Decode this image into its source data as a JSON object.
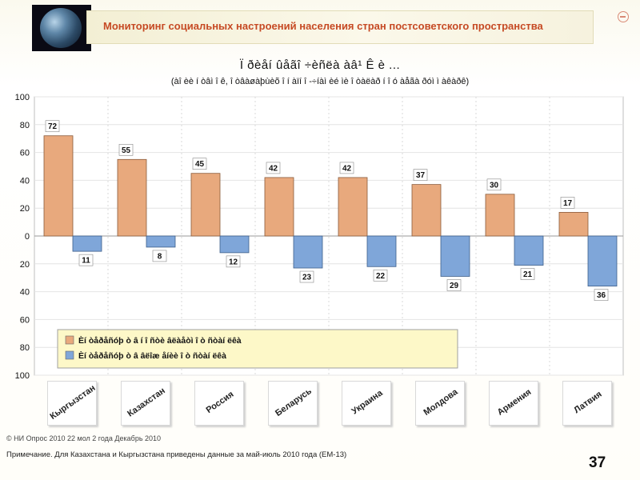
{
  "header": {
    "title": "Мониторинг социальных настроений населения стран постсоветского пространства"
  },
  "chart_data": {
    "type": "bar",
    "title": "Ï ðèåí ûåãî ÷èñëà àâ¹ Ê è ...",
    "subtitle": "(àî èè í òâì î ê, î òâàøàþùèõ î í àïí î -÷íàì èé ìè î òàëàð í î ó àåãà ðóì ì àêàðê)",
    "categories": [
      "Кыргызстан",
      "Казахстан",
      "Россия",
      "Беларусь",
      "Украина",
      "Молдова",
      "Армения",
      "Латвия"
    ],
    "series": [
      {
        "name": "Èí òåðåñóþ ò â í î ñòè âëàåòì  î ò ñòàí ëêà",
        "color": "#e8a97d",
        "values": [
          72,
          55,
          45,
          42,
          42,
          37,
          30,
          17
        ]
      },
      {
        "name": "Èí òåðåñóþ ò â âëîæ åíèè  î ò ñòàí ëêà",
        "color": "#7fa6d9",
        "values": [
          11,
          8,
          12,
          23,
          22,
          29,
          21,
          36
        ]
      }
    ],
    "y_tick_labels": [
      "100",
      "80",
      "60",
      "40",
      "20",
      "0",
      "20",
      "40",
      "60",
      "80",
      "100"
    ],
    "ylim": [
      -100,
      100
    ],
    "legend_position": "bottom",
    "grid": true
  },
  "source_note": "© НИ Опрос 2010 22 мол 2 года Декабрь 2010",
  "footnote": "Примечание. Для Казахстана и Кыргызстана приведены данные за май-июль 2010 года (ЕМ-13)",
  "page_number": "37"
}
